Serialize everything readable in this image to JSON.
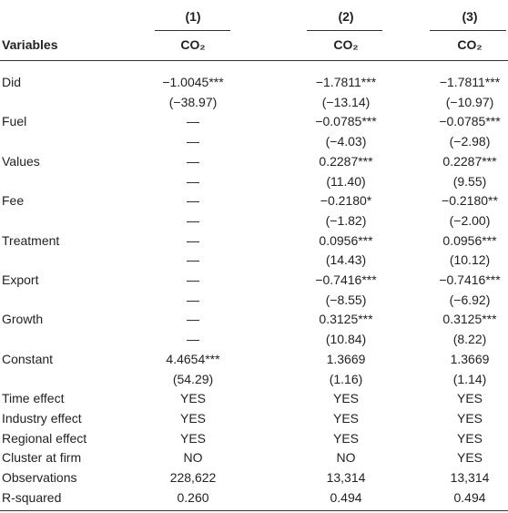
{
  "table": {
    "columns": [
      "(1)",
      "(2)",
      "(3)"
    ],
    "header": [
      "Variables",
      "CO₂",
      "CO₂",
      "CO₂"
    ],
    "rows": [
      {
        "label": "Did",
        "cells": [
          "−1.0045***",
          "−1.7811***",
          "−1.7811***"
        ]
      },
      {
        "cells": [
          "(−38.97)",
          "(−13.14)",
          "(−10.97)"
        ]
      },
      {
        "label": "Fuel",
        "cells": [
          "—",
          "−0.0785***",
          "−0.0785***"
        ]
      },
      {
        "cells": [
          "—",
          "(−4.03)",
          "(−2.98)"
        ]
      },
      {
        "label": "Values",
        "cells": [
          "—",
          "0.2287***",
          "0.2287***"
        ]
      },
      {
        "cells": [
          "—",
          "(11.40)",
          "(9.55)"
        ]
      },
      {
        "label": "Fee",
        "cells": [
          "—",
          "−0.2180*",
          "−0.2180**"
        ]
      },
      {
        "cells": [
          "—",
          "(−1.82)",
          "(−2.00)"
        ]
      },
      {
        "label": "Treatment",
        "cells": [
          "—",
          "0.0956***",
          "0.0956***"
        ]
      },
      {
        "cells": [
          "—",
          "(14.43)",
          "(10.12)"
        ]
      },
      {
        "label": "Export",
        "cells": [
          "—",
          "−0.7416***",
          "−0.7416***"
        ]
      },
      {
        "cells": [
          "—",
          "(−8.55)",
          "(−6.92)"
        ]
      },
      {
        "label": "Growth",
        "cells": [
          "—",
          "0.3125***",
          "0.3125***"
        ]
      },
      {
        "cells": [
          "—",
          "(10.84)",
          "(8.22)"
        ]
      },
      {
        "label": "Constant",
        "cells": [
          "4.4654***",
          "1.3669",
          "1.3669"
        ]
      },
      {
        "cells": [
          "(54.29)",
          "(1.16)",
          "(1.14)"
        ]
      },
      {
        "label": "Time effect",
        "cells": [
          "YES",
          "YES",
          "YES"
        ]
      },
      {
        "label": "Industry effect",
        "cells": [
          "YES",
          "YES",
          "YES"
        ]
      },
      {
        "label": "Regional effect",
        "cells": [
          "YES",
          "YES",
          "YES"
        ]
      },
      {
        "label": "Cluster at firm",
        "cells": [
          "NO",
          "NO",
          "YES"
        ]
      },
      {
        "label": "Observations",
        "cells": [
          "228,622",
          "13,314",
          "13,314"
        ]
      },
      {
        "label": "R-squared",
        "cells": [
          "0.260",
          "0.494",
          "0.494"
        ]
      }
    ]
  }
}
